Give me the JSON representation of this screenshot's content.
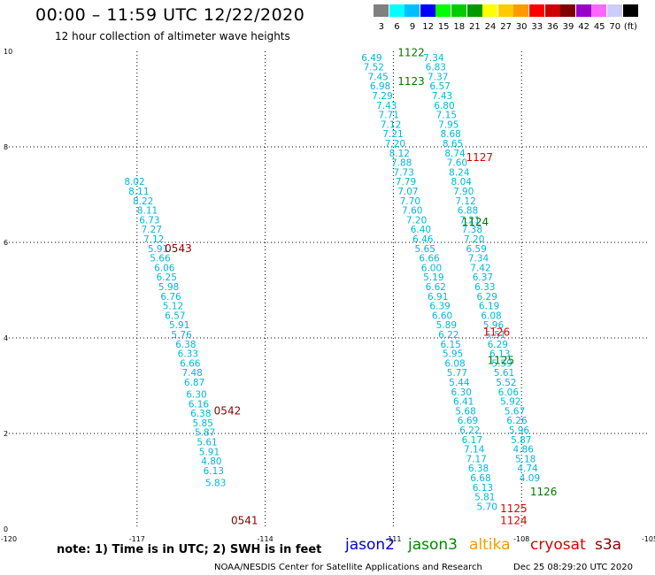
{
  "title": "00:00 – 11:59 UTC 12/22/2020",
  "subtitle": "12 hour collection of altimeter wave heights",
  "scale": {
    "colors": [
      "#808080",
      "#00ffff",
      "#00bfff",
      "#0000ff",
      "#00ff00",
      "#00cc00",
      "#009900",
      "#ffff00",
      "#ffcc00",
      "#ff9900",
      "#ff0000",
      "#cc0000",
      "#800000",
      "#9900cc",
      "#ff66ff",
      "#ccccff",
      "#000000"
    ],
    "labels": [
      "3",
      "6",
      "9",
      "12",
      "15",
      "18",
      "21",
      "24",
      "27",
      "30",
      "33",
      "36",
      "39",
      "42",
      "45",
      "70",
      "(ft)"
    ]
  },
  "chart_data": {
    "type": "scatter",
    "xlim": [
      -120,
      -105
    ],
    "ylim": [
      0,
      10
    ],
    "xticks": [
      "-120",
      "-117",
      "-114",
      "-111",
      "-108",
      "-105"
    ],
    "yticks": [
      "0",
      "2",
      "4",
      "6",
      "8",
      "10"
    ],
    "grid": true,
    "series": [
      {
        "name": "jason2",
        "color": "#0000cc",
        "points": []
      },
      {
        "name": "jason3",
        "color": "#008800",
        "points": []
      },
      {
        "name": "altika",
        "color": "#ff9900",
        "points": []
      },
      {
        "name": "cryosat",
        "color": "#dd0000",
        "points": []
      },
      {
        "name": "s3a",
        "color": "#880000",
        "points": []
      }
    ],
    "swh_points": [
      {
        "x": -117.3,
        "y": 7.2,
        "v": "8.02"
      },
      {
        "x": -117.2,
        "y": 7.0,
        "v": "8.11"
      },
      {
        "x": -117.1,
        "y": 6.8,
        "v": "8.22"
      },
      {
        "x": -117.0,
        "y": 6.6,
        "v": "8.11"
      },
      {
        "x": -116.95,
        "y": 6.4,
        "v": "6.73"
      },
      {
        "x": -116.9,
        "y": 6.2,
        "v": "7.27"
      },
      {
        "x": -116.85,
        "y": 6.0,
        "v": "7.12"
      },
      {
        "x": -116.75,
        "y": 5.8,
        "v": "5.91"
      },
      {
        "x": -116.7,
        "y": 5.6,
        "v": "5.66"
      },
      {
        "x": -116.6,
        "y": 5.4,
        "v": "6.06"
      },
      {
        "x": -116.55,
        "y": 5.2,
        "v": "6.25"
      },
      {
        "x": -116.5,
        "y": 5.0,
        "v": "5.98"
      },
      {
        "x": -116.45,
        "y": 4.8,
        "v": "6.76"
      },
      {
        "x": -116.4,
        "y": 4.6,
        "v": "5.12"
      },
      {
        "x": -116.35,
        "y": 4.4,
        "v": "6.57"
      },
      {
        "x": -116.25,
        "y": 4.2,
        "v": "5.91"
      },
      {
        "x": -116.2,
        "y": 4.0,
        "v": "5.76"
      },
      {
        "x": -116.1,
        "y": 3.8,
        "v": "6.38"
      },
      {
        "x": -116.05,
        "y": 3.6,
        "v": "6.33"
      },
      {
        "x": -116.0,
        "y": 3.4,
        "v": "6.66"
      },
      {
        "x": -115.95,
        "y": 3.2,
        "v": "7.48"
      },
      {
        "x": -115.9,
        "y": 3.0,
        "v": "6.87"
      },
      {
        "x": -115.85,
        "y": 2.75,
        "v": "6.30"
      },
      {
        "x": -115.8,
        "y": 2.55,
        "v": "6.16"
      },
      {
        "x": -115.75,
        "y": 2.35,
        "v": "6.38"
      },
      {
        "x": -115.7,
        "y": 2.15,
        "v": "5.85"
      },
      {
        "x": -115.65,
        "y": 1.95,
        "v": "5.87"
      },
      {
        "x": -115.6,
        "y": 1.75,
        "v": "5.61"
      },
      {
        "x": -115.55,
        "y": 1.55,
        "v": "5.91"
      },
      {
        "x": -115.5,
        "y": 1.35,
        "v": "4.80"
      },
      {
        "x": -115.45,
        "y": 1.15,
        "v": "6.13"
      },
      {
        "x": -115.4,
        "y": 0.9,
        "v": "5.83"
      },
      {
        "x": -111.75,
        "y": 9.8,
        "v": "6.49"
      },
      {
        "x": -111.7,
        "y": 9.6,
        "v": "7.52"
      },
      {
        "x": -111.6,
        "y": 9.4,
        "v": "7.45"
      },
      {
        "x": -111.55,
        "y": 9.2,
        "v": "6.98"
      },
      {
        "x": -111.5,
        "y": 9.0,
        "v": "7.29"
      },
      {
        "x": -111.4,
        "y": 8.8,
        "v": "7.43"
      },
      {
        "x": -111.35,
        "y": 8.6,
        "v": "7.71"
      },
      {
        "x": -111.3,
        "y": 8.4,
        "v": "7.12"
      },
      {
        "x": -111.25,
        "y": 8.2,
        "v": "7.21"
      },
      {
        "x": -111.2,
        "y": 8.0,
        "v": "7.20"
      },
      {
        "x": -111.1,
        "y": 7.8,
        "v": "8.12"
      },
      {
        "x": -111.05,
        "y": 7.6,
        "v": "7.88"
      },
      {
        "x": -111.0,
        "y": 7.4,
        "v": "7.73"
      },
      {
        "x": -110.95,
        "y": 7.2,
        "v": "7.79"
      },
      {
        "x": -110.9,
        "y": 7.0,
        "v": "7.07"
      },
      {
        "x": -110.85,
        "y": 6.8,
        "v": "7.70"
      },
      {
        "x": -110.8,
        "y": 6.6,
        "v": "7.60"
      },
      {
        "x": -110.7,
        "y": 6.4,
        "v": "7.20"
      },
      {
        "x": -110.6,
        "y": 6.2,
        "v": "6.40"
      },
      {
        "x": -110.55,
        "y": 6.0,
        "v": "6.46"
      },
      {
        "x": -110.5,
        "y": 5.8,
        "v": "5.65"
      },
      {
        "x": -110.4,
        "y": 5.6,
        "v": "6.66"
      },
      {
        "x": -110.35,
        "y": 5.4,
        "v": "6.00"
      },
      {
        "x": -110.3,
        "y": 5.2,
        "v": "5.19"
      },
      {
        "x": -110.25,
        "y": 5.0,
        "v": "6.62"
      },
      {
        "x": -110.2,
        "y": 4.8,
        "v": "6.91"
      },
      {
        "x": -110.15,
        "y": 4.6,
        "v": "6.39"
      },
      {
        "x": -110.1,
        "y": 4.4,
        "v": "6.60"
      },
      {
        "x": -110.0,
        "y": 4.2,
        "v": "5.89"
      },
      {
        "x": -109.95,
        "y": 4.0,
        "v": "6.22"
      },
      {
        "x": -109.9,
        "y": 3.8,
        "v": "6.15"
      },
      {
        "x": -109.85,
        "y": 3.6,
        "v": "5.95"
      },
      {
        "x": -109.8,
        "y": 3.4,
        "v": "6.08"
      },
      {
        "x": -109.75,
        "y": 3.2,
        "v": "5.77"
      },
      {
        "x": -109.7,
        "y": 3.0,
        "v": "5.44"
      },
      {
        "x": -109.65,
        "y": 2.8,
        "v": "6.30"
      },
      {
        "x": -109.6,
        "y": 2.6,
        "v": "6.41"
      },
      {
        "x": -109.55,
        "y": 2.4,
        "v": "5.68"
      },
      {
        "x": -109.5,
        "y": 2.2,
        "v": "6.69"
      },
      {
        "x": -109.45,
        "y": 2.0,
        "v": "6.22"
      },
      {
        "x": -109.4,
        "y": 1.8,
        "v": "6.17"
      },
      {
        "x": -109.35,
        "y": 1.6,
        "v": "7.14"
      },
      {
        "x": -109.3,
        "y": 1.4,
        "v": "7.17"
      },
      {
        "x": -109.25,
        "y": 1.2,
        "v": "6.38"
      },
      {
        "x": -109.2,
        "y": 1.0,
        "v": "6.68"
      },
      {
        "x": -109.15,
        "y": 0.8,
        "v": "6.13"
      },
      {
        "x": -109.1,
        "y": 0.6,
        "v": "5.81"
      },
      {
        "x": -109.05,
        "y": 0.4,
        "v": "5.70"
      },
      {
        "x": -110.3,
        "y": 9.8,
        "v": "7.34"
      },
      {
        "x": -110.25,
        "y": 9.6,
        "v": "6.83"
      },
      {
        "x": -110.2,
        "y": 9.4,
        "v": "7.37"
      },
      {
        "x": -110.15,
        "y": 9.2,
        "v": "6.57"
      },
      {
        "x": -110.1,
        "y": 9.0,
        "v": "7.43"
      },
      {
        "x": -110.05,
        "y": 8.8,
        "v": "6.80"
      },
      {
        "x": -110.0,
        "y": 8.6,
        "v": "7.15"
      },
      {
        "x": -109.95,
        "y": 8.4,
        "v": "7.95"
      },
      {
        "x": -109.9,
        "y": 8.2,
        "v": "8.68"
      },
      {
        "x": -109.85,
        "y": 8.0,
        "v": "8.65"
      },
      {
        "x": -109.8,
        "y": 7.8,
        "v": "8.74"
      },
      {
        "x": -109.75,
        "y": 7.6,
        "v": "7.60"
      },
      {
        "x": -109.7,
        "y": 7.4,
        "v": "8.24"
      },
      {
        "x": -109.65,
        "y": 7.2,
        "v": "8.04"
      },
      {
        "x": -109.6,
        "y": 7.0,
        "v": "7.90"
      },
      {
        "x": -109.55,
        "y": 6.8,
        "v": "7.12"
      },
      {
        "x": -109.5,
        "y": 6.6,
        "v": "6.88"
      },
      {
        "x": -109.45,
        "y": 6.4,
        "v": "7.21"
      },
      {
        "x": -109.4,
        "y": 6.2,
        "v": "7.38"
      },
      {
        "x": -109.35,
        "y": 6.0,
        "v": "7.20"
      },
      {
        "x": -109.3,
        "y": 5.8,
        "v": "6.59"
      },
      {
        "x": -109.25,
        "y": 5.6,
        "v": "7.34"
      },
      {
        "x": -109.2,
        "y": 5.4,
        "v": "7.42"
      },
      {
        "x": -109.15,
        "y": 5.2,
        "v": "6.37"
      },
      {
        "x": -109.1,
        "y": 5.0,
        "v": "6.33"
      },
      {
        "x": -109.05,
        "y": 4.8,
        "v": "6.29"
      },
      {
        "x": -109.0,
        "y": 4.6,
        "v": "6.19"
      },
      {
        "x": -108.95,
        "y": 4.4,
        "v": "6.08"
      },
      {
        "x": -108.9,
        "y": 4.2,
        "v": "5.96"
      },
      {
        "x": -108.85,
        "y": 4.0,
        "v": "5.51"
      },
      {
        "x": -108.8,
        "y": 3.8,
        "v": "6.29"
      },
      {
        "x": -108.75,
        "y": 3.6,
        "v": "6.13"
      },
      {
        "x": -108.7,
        "y": 3.4,
        "v": "5.59"
      },
      {
        "x": -108.65,
        "y": 3.2,
        "v": "5.61"
      },
      {
        "x": -108.6,
        "y": 3.0,
        "v": "5.52"
      },
      {
        "x": -108.55,
        "y": 2.8,
        "v": "6.06"
      },
      {
        "x": -108.5,
        "y": 2.6,
        "v": "5.92"
      },
      {
        "x": -108.4,
        "y": 2.4,
        "v": "5.67"
      },
      {
        "x": -108.35,
        "y": 2.2,
        "v": "6.26"
      },
      {
        "x": -108.3,
        "y": 2.0,
        "v": "5.96"
      },
      {
        "x": -108.25,
        "y": 1.8,
        "v": "5.87"
      },
      {
        "x": -108.2,
        "y": 1.6,
        "v": "4.86"
      },
      {
        "x": -108.15,
        "y": 1.4,
        "v": "5.18"
      },
      {
        "x": -108.1,
        "y": 1.2,
        "v": "4.74"
      },
      {
        "x": -108.05,
        "y": 1.0,
        "v": "4.09"
      }
    ],
    "track_labels": [
      {
        "x": -110.9,
        "y": 9.9,
        "v": "1122",
        "color": "#007700"
      },
      {
        "x": -110.9,
        "y": 9.3,
        "v": "1123",
        "color": "#007700"
      },
      {
        "x": -109.3,
        "y": 7.7,
        "v": "1127",
        "color": "#dd0000"
      },
      {
        "x": -109.4,
        "y": 6.35,
        "v": "1124",
        "color": "#007700"
      },
      {
        "x": -108.9,
        "y": 4.05,
        "v": "1126",
        "color": "#dd0000"
      },
      {
        "x": -108.8,
        "y": 3.45,
        "v": "1125",
        "color": "#007700"
      },
      {
        "x": -107.8,
        "y": 0.7,
        "v": "1126",
        "color": "#007700"
      },
      {
        "x": -108.5,
        "y": 0.35,
        "v": "1125",
        "color": "#dd0000"
      },
      {
        "x": -108.5,
        "y": 0.1,
        "v": "1124",
        "color": "#dd0000"
      },
      {
        "x": -116.35,
        "y": 5.8,
        "v": "0543",
        "color": "#880000"
      },
      {
        "x": -115.2,
        "y": 2.4,
        "v": "0542",
        "color": "#880000"
      },
      {
        "x": -114.8,
        "y": 0.1,
        "v": "0541",
        "color": "#880000"
      }
    ]
  },
  "footer": {
    "note": "note:  1) Time is in UTC;  2) SWH is in feet",
    "legend": [
      "jason2",
      "jason3",
      "altika",
      "cryosat",
      "s3a"
    ],
    "legend_colors": [
      "#0000cc",
      "#008800",
      "#ff9900",
      "#dd0000",
      "#880000"
    ],
    "credit": "NOAA/NESDIS Center for Satellite Applications and Research",
    "timestamp": "Dec 25 08:29:20 UTC 2020"
  }
}
